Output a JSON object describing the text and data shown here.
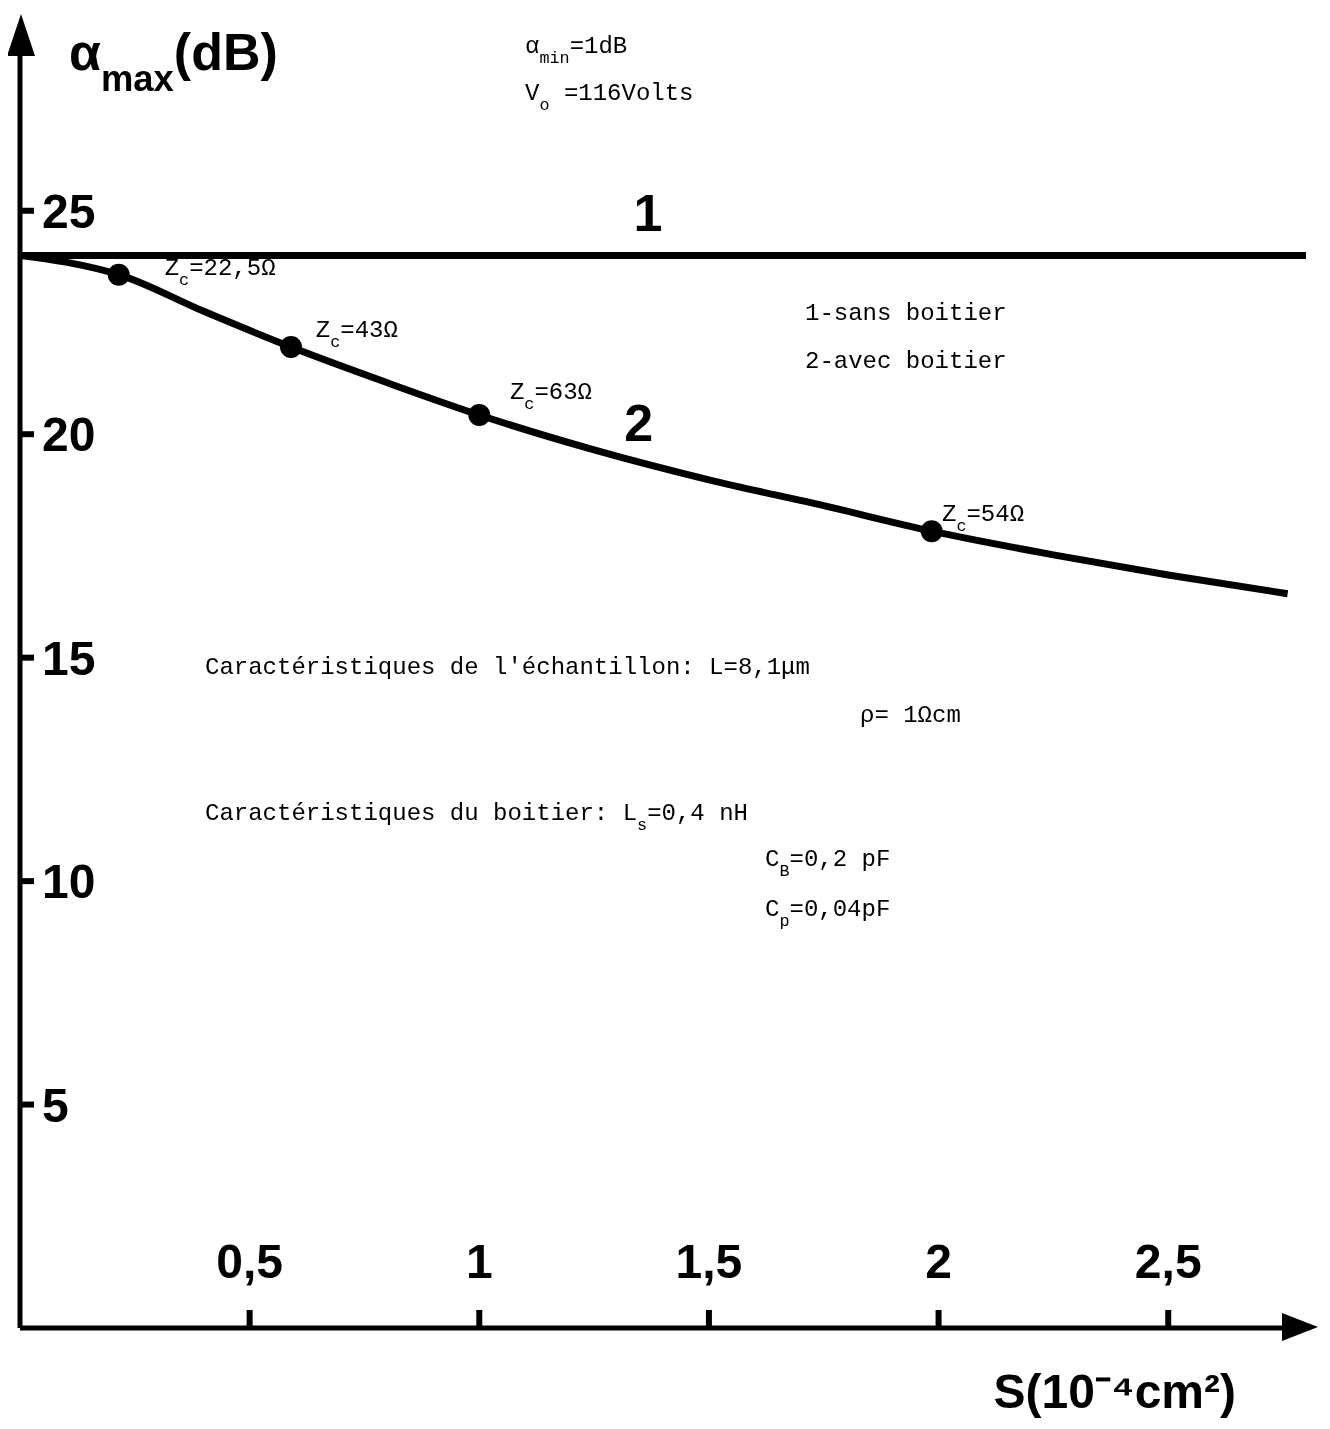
{
  "chart_data": {
    "type": "line",
    "xlabel": "S(10⁻⁴cm²)",
    "ylabel": "α$_{max}$(dB)",
    "xlim": [
      0,
      2.8
    ],
    "ylim": [
      0,
      29
    ],
    "xticks": [
      {
        "value": 0.5,
        "label": "0,5"
      },
      1,
      {
        "value": 1.5,
        "label": "1,5"
      },
      2,
      {
        "value": 2.5,
        "label": "2,5"
      }
    ],
    "yticks": [
      5,
      10,
      15,
      20,
      25
    ],
    "grid": false,
    "legend": false,
    "series": [
      {
        "name": "1",
        "color": "#000000",
        "marker": "none",
        "x": [
          0,
          2.8
        ],
        "values": [
          24,
          24
        ]
      },
      {
        "name": "2",
        "color": "#000000",
        "marker": "none",
        "x": [
          0,
          0.1,
          0.215,
          0.4,
          0.59,
          0.8,
          1.0,
          1.25,
          1.5,
          1.75,
          1.985,
          2.25,
          2.5,
          2.76
        ],
        "values": [
          24,
          23.85,
          23.57,
          22.75,
          21.95,
          21.15,
          20.43,
          19.65,
          18.98,
          18.4,
          17.83,
          17.3,
          16.85,
          16.43
        ]
      },
      {
        "color": "#000000",
        "type": "scatter",
        "marker": "circle",
        "x": [
          0.215,
          0.59,
          1.0,
          1.985
        ],
        "values": [
          23.57,
          21.95,
          20.43,
          17.83
        ]
      }
    ],
    "annotations": [
      "α$_{min}$=1dB",
      "V$_{o}$ =116Volts",
      "1-sans boitier",
      "2-avec boitier",
      "Caractéristiques de l'échantillon: L=8,1μm",
      "ρ= 1Ωcm",
      "Caractéristiques du boitier: L$_{s}$=0,4 nH",
      "C$_{B}$=0,2 pF",
      "C$_{p}$=0,04pF",
      {
        "text": "Z$_{c}$=22,5Ω",
        "x": 0.215,
        "y": 23.57
      },
      {
        "text": "Z$_{c}$=43Ω",
        "x": 0.59,
        "y": 21.95
      },
      {
        "text": "Z$_{c}$=63Ω",
        "x": 1.0,
        "y": 20.43
      },
      {
        "text": "Z$_{c}$=54Ω",
        "x": 1.985,
        "y": 17.83
      }
    ]
  }
}
